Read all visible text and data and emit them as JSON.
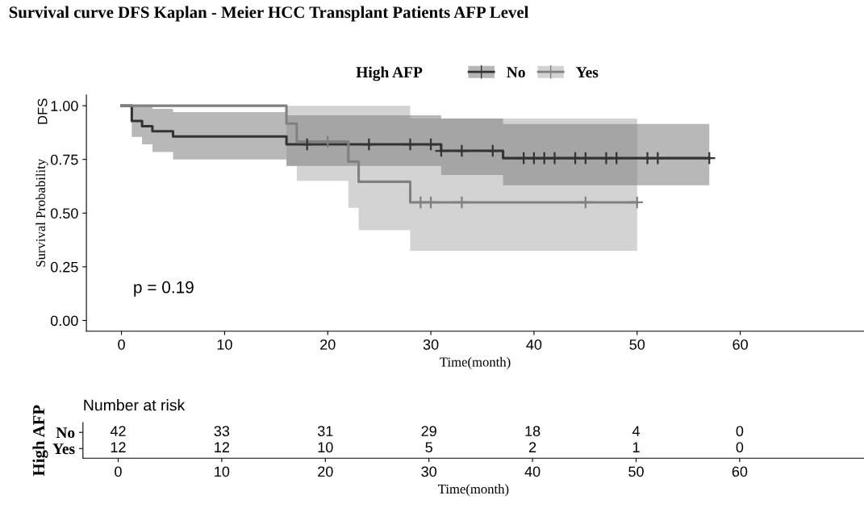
{
  "chart_data": [
    {
      "type": "step",
      "title": "Survival curve DFS Kaplan - Meier HCC Transplant Patients AFP Level",
      "xlabel": "Time(month)",
      "ylabel": "Survival Probability",
      "legend_title": "High AFP",
      "legend": "top",
      "grid": false,
      "annotations": [
        "DFS",
        "p = 0.19"
      ],
      "xlim": [
        -3.4,
        72
      ],
      "xticks": [
        0,
        10,
        20,
        30,
        40,
        50,
        60
      ],
      "ylim": [
        -0.05,
        1.05
      ],
      "yticks": [
        {
          "value": 0,
          "label": "0.00"
        },
        {
          "value": 0.25,
          "label": "0.25"
        },
        {
          "value": 0.5,
          "label": "0.50"
        },
        {
          "value": 0.75,
          "label": "0.75"
        },
        {
          "value": 1,
          "label": "1.00"
        }
      ],
      "series": [
        {
          "name": "No",
          "color": "#333333",
          "x": [
            0,
            1,
            2,
            3,
            5,
            16,
            31,
            37,
            57
          ],
          "values": [
            1,
            0.929,
            0.905,
            0.881,
            0.857,
            0.82,
            0.79,
            0.756,
            0.756
          ],
          "lower": [
            null,
            0.855,
            0.82,
            0.785,
            0.75,
            0.72,
            0.678,
            0.63,
            0.63
          ],
          "upper": [
            null,
            1,
            1,
            0.985,
            0.97,
            0.955,
            0.94,
            0.915,
            0.915
          ]
        },
        {
          "name": "Yes",
          "color": "#808080",
          "x": [
            0,
            16,
            17,
            22,
            23,
            28,
            50
          ],
          "values": [
            1,
            0.917,
            0.833,
            0.74,
            0.646,
            0.55,
            0.55
          ],
          "lower": [
            null,
            0.72,
            0.65,
            0.525,
            0.42,
            0.325,
            0.325
          ],
          "upper": [
            null,
            1,
            1,
            1,
            1,
            0.94,
            0.94
          ]
        },
        {
          "type": "scatter",
          "marker": "cross",
          "color": "#333333",
          "x": [
            18,
            24,
            28,
            30,
            31,
            33,
            36,
            39,
            40,
            41,
            42,
            44,
            45,
            47,
            48,
            51,
            52,
            57
          ],
          "values": [
            0.82,
            0.82,
            0.82,
            0.82,
            0.79,
            0.79,
            0.79,
            0.756,
            0.756,
            0.756,
            0.756,
            0.756,
            0.756,
            0.756,
            0.756,
            0.756,
            0.756,
            0.756
          ]
        },
        {
          "type": "scatter",
          "marker": "cross",
          "color": "#808080",
          "x": [
            20,
            29,
            30,
            33,
            45,
            50
          ],
          "values": [
            0.833,
            0.55,
            0.55,
            0.55,
            0.55,
            0.55
          ]
        }
      ]
    },
    {
      "type": "heatmap",
      "title": "Number at risk",
      "xlabel": "Time(month)",
      "ylabel": "High AFP",
      "data_labels": true,
      "categories": [
        "0",
        "10",
        "20",
        "30",
        "40",
        "50",
        "60"
      ],
      "y_categories": [
        "No",
        "Yes"
      ],
      "cells": [
        [
          42,
          33,
          31,
          29,
          18,
          4,
          0
        ],
        [
          12,
          12,
          10,
          5,
          2,
          1,
          0
        ]
      ]
    }
  ]
}
